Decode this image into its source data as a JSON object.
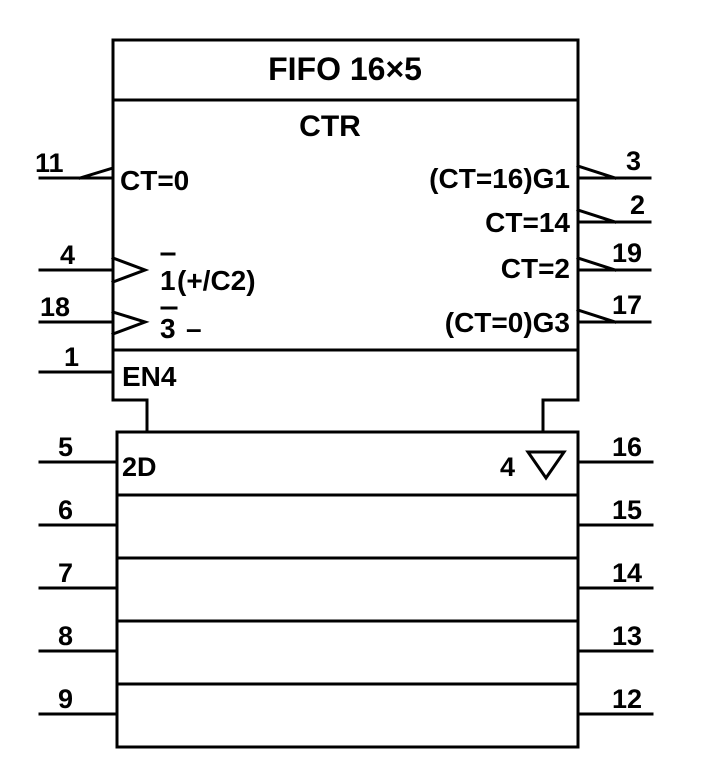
{
  "header": {
    "title": "FIFO 16×5"
  },
  "control_block": {
    "qualifier": "CTR",
    "inputs": {
      "reset": {
        "pin": "11",
        "label": "CT=0"
      },
      "count_up": {
        "pin": "4",
        "label_num": "1",
        "label_rest": "(+/C2)"
      },
      "count_down": {
        "pin": "18",
        "label_num": "3",
        "label_rest": "–"
      },
      "enable": {
        "pin": "1",
        "label": "EN4"
      }
    },
    "outputs": {
      "full": {
        "pin": "3",
        "label": "(CT=16)G1"
      },
      "ct14": {
        "pin": "2",
        "label": "CT=14"
      },
      "ct2": {
        "pin": "19",
        "label": "CT=2"
      },
      "empty": {
        "pin": "17",
        "label": "(CT=0)G3"
      }
    }
  },
  "storage": {
    "data_label": "2D",
    "output_label": "4",
    "output_icon": "open-triangle-down-icon",
    "rows": [
      {
        "in_pin": "5",
        "out_pin": "16"
      },
      {
        "in_pin": "6",
        "out_pin": "15"
      },
      {
        "in_pin": "7",
        "out_pin": "14"
      },
      {
        "in_pin": "8",
        "out_pin": "13"
      },
      {
        "in_pin": "9",
        "out_pin": "12"
      }
    ]
  }
}
